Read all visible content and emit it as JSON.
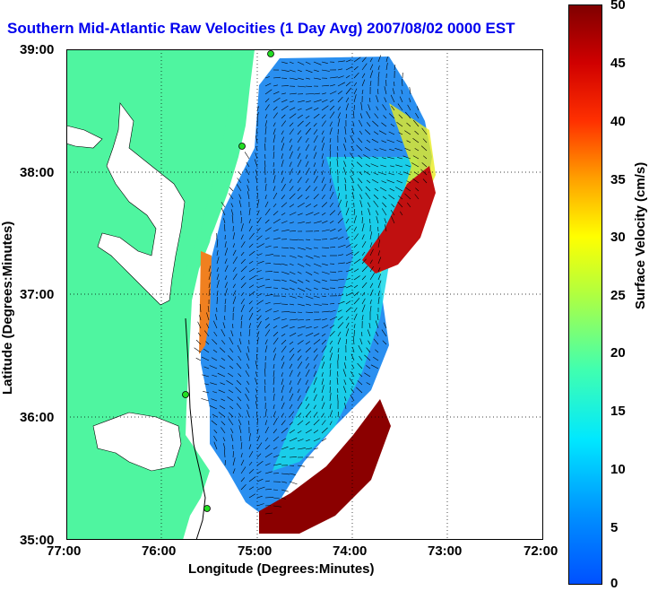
{
  "title": "Southern Mid-Atlantic Raw Velocities (1 Day Avg) 2007/08/02 0000 EST",
  "xlabel": "Longitude (Degrees:Minutes)",
  "ylabel": "Latitude (Degrees:Minutes)",
  "colorbar": {
    "label": "Surface Velocity (cm/s)",
    "ticks": [
      "0",
      "5",
      "10",
      "15",
      "20",
      "25",
      "30",
      "35",
      "40",
      "45",
      "50"
    ]
  },
  "x_ticks": [
    "77:00",
    "76:00",
    "75:00",
    "74:00",
    "73:00",
    "72:00"
  ],
  "y_ticks": [
    "39:00",
    "38:00",
    "37:00",
    "36:00",
    "35:00"
  ],
  "colors": {
    "land": "#4ff5a0",
    "water": "#ffffff",
    "title": "#0000ee",
    "station": "#22dd22"
  }
}
